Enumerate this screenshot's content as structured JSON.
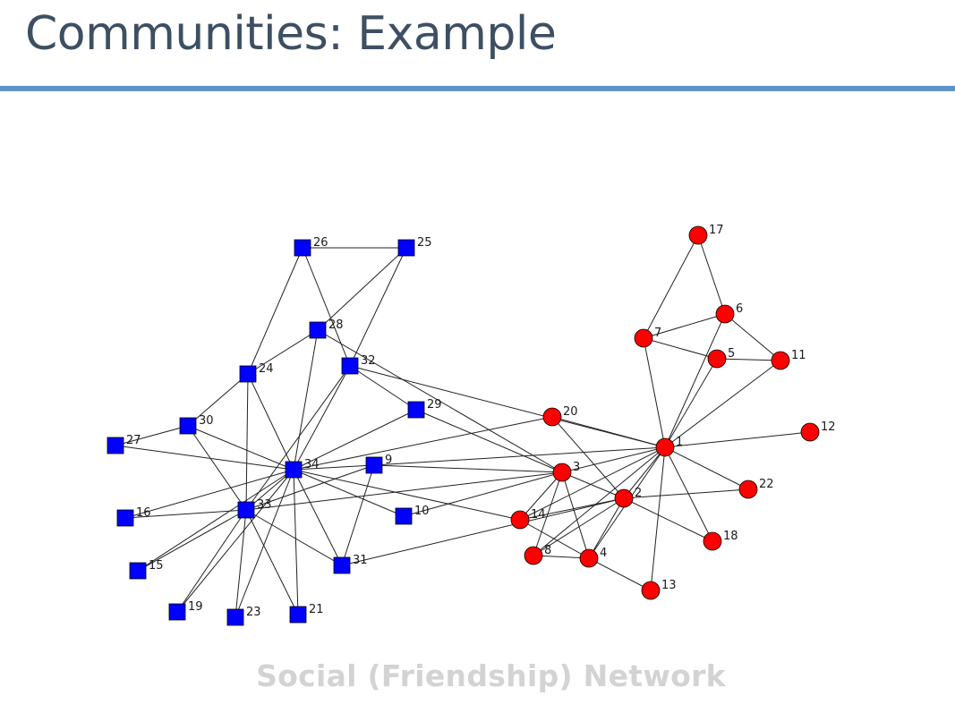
{
  "slide": {
    "title": "Communities: Example",
    "caption": "Social (Friendship) Network",
    "accent_color": "#5e93c5",
    "title_color": "#3d4f63"
  },
  "network": {
    "communities": [
      {
        "shape": "circle",
        "color": "#ff0000"
      },
      {
        "shape": "square",
        "color": "#0000ff"
      }
    ],
    "nodes": [
      {
        "id": "1",
        "community": 0
      },
      {
        "id": "2",
        "community": 0
      },
      {
        "id": "3",
        "community": 0
      },
      {
        "id": "4",
        "community": 0
      },
      {
        "id": "5",
        "community": 0
      },
      {
        "id": "6",
        "community": 0
      },
      {
        "id": "7",
        "community": 0
      },
      {
        "id": "8",
        "community": 0
      },
      {
        "id": "9",
        "community": 1
      },
      {
        "id": "10",
        "community": 1
      },
      {
        "id": "11",
        "community": 0
      },
      {
        "id": "12",
        "community": 0
      },
      {
        "id": "13",
        "community": 0
      },
      {
        "id": "14",
        "community": 0
      },
      {
        "id": "15",
        "community": 1
      },
      {
        "id": "16",
        "community": 1
      },
      {
        "id": "17",
        "community": 0
      },
      {
        "id": "18",
        "community": 0
      },
      {
        "id": "19",
        "community": 1
      },
      {
        "id": "20",
        "community": 0
      },
      {
        "id": "21",
        "community": 1
      },
      {
        "id": "22",
        "community": 0
      },
      {
        "id": "23",
        "community": 1
      },
      {
        "id": "24",
        "community": 1
      },
      {
        "id": "25",
        "community": 1
      },
      {
        "id": "26",
        "community": 1
      },
      {
        "id": "27",
        "community": 1
      },
      {
        "id": "28",
        "community": 1
      },
      {
        "id": "29",
        "community": 1
      },
      {
        "id": "30",
        "community": 1
      },
      {
        "id": "31",
        "community": 1
      },
      {
        "id": "32",
        "community": 1
      },
      {
        "id": "33",
        "community": 1
      },
      {
        "id": "34",
        "community": 1
      }
    ],
    "edges": [
      [
        "1",
        "2"
      ],
      [
        "1",
        "3"
      ],
      [
        "1",
        "4"
      ],
      [
        "1",
        "5"
      ],
      [
        "1",
        "6"
      ],
      [
        "1",
        "7"
      ],
      [
        "1",
        "8"
      ],
      [
        "1",
        "9"
      ],
      [
        "1",
        "11"
      ],
      [
        "1",
        "12"
      ],
      [
        "1",
        "13"
      ],
      [
        "1",
        "14"
      ],
      [
        "1",
        "18"
      ],
      [
        "1",
        "20"
      ],
      [
        "1",
        "22"
      ],
      [
        "1",
        "32"
      ],
      [
        "2",
        "3"
      ],
      [
        "2",
        "4"
      ],
      [
        "2",
        "8"
      ],
      [
        "2",
        "14"
      ],
      [
        "2",
        "18"
      ],
      [
        "2",
        "20"
      ],
      [
        "2",
        "22"
      ],
      [
        "2",
        "31"
      ],
      [
        "3",
        "4"
      ],
      [
        "3",
        "8"
      ],
      [
        "3",
        "9"
      ],
      [
        "3",
        "10"
      ],
      [
        "3",
        "14"
      ],
      [
        "3",
        "28"
      ],
      [
        "3",
        "29"
      ],
      [
        "3",
        "33"
      ],
      [
        "4",
        "8"
      ],
      [
        "4",
        "13"
      ],
      [
        "4",
        "14"
      ],
      [
        "5",
        "7"
      ],
      [
        "5",
        "11"
      ],
      [
        "6",
        "7"
      ],
      [
        "6",
        "11"
      ],
      [
        "6",
        "17"
      ],
      [
        "7",
        "17"
      ],
      [
        "9",
        "31"
      ],
      [
        "9",
        "33"
      ],
      [
        "9",
        "34"
      ],
      [
        "10",
        "34"
      ],
      [
        "14",
        "34"
      ],
      [
        "15",
        "33"
      ],
      [
        "15",
        "34"
      ],
      [
        "16",
        "33"
      ],
      [
        "16",
        "34"
      ],
      [
        "19",
        "33"
      ],
      [
        "19",
        "34"
      ],
      [
        "20",
        "34"
      ],
      [
        "21",
        "33"
      ],
      [
        "21",
        "34"
      ],
      [
        "23",
        "33"
      ],
      [
        "23",
        "34"
      ],
      [
        "24",
        "26"
      ],
      [
        "24",
        "28"
      ],
      [
        "24",
        "30"
      ],
      [
        "24",
        "33"
      ],
      [
        "24",
        "34"
      ],
      [
        "25",
        "26"
      ],
      [
        "25",
        "28"
      ],
      [
        "25",
        "32"
      ],
      [
        "26",
        "32"
      ],
      [
        "27",
        "30"
      ],
      [
        "27",
        "34"
      ],
      [
        "28",
        "34"
      ],
      [
        "29",
        "32"
      ],
      [
        "29",
        "34"
      ],
      [
        "30",
        "33"
      ],
      [
        "30",
        "34"
      ],
      [
        "31",
        "33"
      ],
      [
        "31",
        "34"
      ],
      [
        "32",
        "33"
      ],
      [
        "32",
        "34"
      ],
      [
        "33",
        "34"
      ]
    ]
  }
}
